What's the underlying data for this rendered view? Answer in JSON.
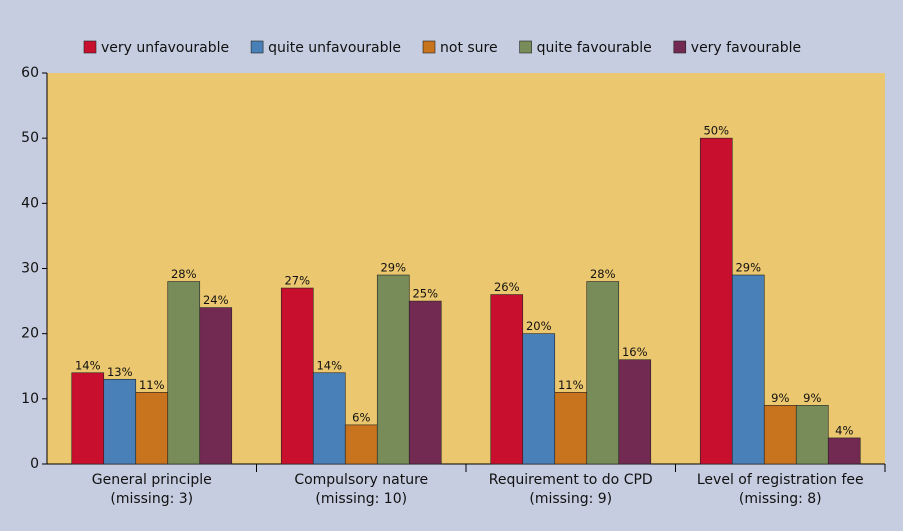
{
  "chart_data": {
    "type": "bar",
    "categories": [
      [
        "General principle",
        "(missing: 3)"
      ],
      [
        "Compulsory nature",
        "(missing: 10)"
      ],
      [
        "Requirement to do CPD",
        "(missing: 9)"
      ],
      [
        "Level of registration fee",
        "(missing: 8)"
      ]
    ],
    "series": [
      {
        "name": "very unfavourable",
        "color": "#c8102e",
        "values": [
          14,
          27,
          26,
          50
        ],
        "value_labels": [
          "14%",
          "27%",
          "26%",
          "50%"
        ]
      },
      {
        "name": "quite unfavourable",
        "color": "#4a80b8",
        "values": [
          13,
          14,
          20,
          29
        ],
        "value_labels": [
          "13%",
          "14%",
          "20%",
          "29%"
        ]
      },
      {
        "name": "not sure",
        "color": "#c8731e",
        "values": [
          11,
          6,
          11,
          9
        ],
        "value_labels": [
          "11%",
          "6%",
          "11%",
          "9%"
        ]
      },
      {
        "name": "quite favourable",
        "color": "#788c5a",
        "values": [
          28,
          29,
          28,
          9
        ],
        "value_labels": [
          "28%",
          "29%",
          "28%",
          "9%"
        ]
      },
      {
        "name": "very favourable",
        "color": "#722a52",
        "values": [
          24,
          25,
          16,
          4
        ],
        "value_labels": [
          "24%",
          "25%",
          "16%",
          "4%"
        ]
      }
    ],
    "ylim": [
      0,
      60
    ],
    "yticks": [
      0,
      10,
      20,
      30,
      40,
      50,
      60
    ],
    "legend": "top"
  }
}
